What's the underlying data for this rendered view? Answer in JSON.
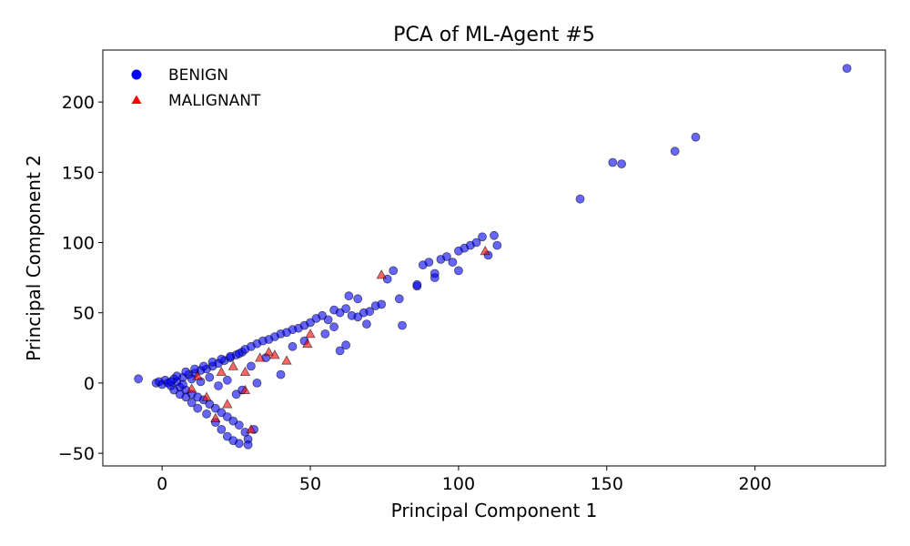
{
  "chart_data": {
    "type": "scatter",
    "title": "PCA of ML-Agent #5",
    "xlabel": "Principal Component 1",
    "ylabel": "Principal Component 2",
    "xlim": [
      -20,
      244
    ],
    "ylim": [
      -59,
      237
    ],
    "xticks": [
      0,
      50,
      100,
      150,
      200
    ],
    "yticks": [
      -50,
      0,
      50,
      100,
      150,
      200
    ],
    "tick_labels_x": [
      "0",
      "50",
      "100",
      "150",
      "200"
    ],
    "tick_labels_y": [
      "−50",
      "0",
      "50",
      "100",
      "150",
      "200"
    ],
    "grid": false,
    "legend": {
      "position": "top-left",
      "frame": false
    },
    "series": [
      {
        "name": "BENIGN",
        "marker": "circle",
        "color": "#0000ff",
        "points": [
          [
            -8,
            3
          ],
          [
            -2,
            0
          ],
          [
            -1,
            1
          ],
          [
            0,
            -1
          ],
          [
            1,
            2
          ],
          [
            2,
            0
          ],
          [
            3,
            -2
          ],
          [
            4,
            3
          ],
          [
            5,
            1
          ],
          [
            6,
            -3
          ],
          [
            7,
            4
          ],
          [
            8,
            -5
          ],
          [
            9,
            6
          ],
          [
            10,
            -8
          ],
          [
            11,
            7
          ],
          [
            12,
            -10
          ],
          [
            13,
            9
          ],
          [
            14,
            -12
          ],
          [
            15,
            10
          ],
          [
            16,
            -15
          ],
          [
            17,
            12
          ],
          [
            18,
            -18
          ],
          [
            19,
            14
          ],
          [
            20,
            -21
          ],
          [
            21,
            16
          ],
          [
            22,
            -24
          ],
          [
            23,
            18
          ],
          [
            24,
            -27
          ],
          [
            25,
            20
          ],
          [
            26,
            -30
          ],
          [
            27,
            22
          ],
          [
            28,
            -35
          ],
          [
            29,
            -40
          ],
          [
            29,
            -44
          ],
          [
            26,
            -43
          ],
          [
            24,
            -41
          ],
          [
            22,
            -38
          ],
          [
            20,
            -33
          ],
          [
            18,
            -28
          ],
          [
            15,
            -22
          ],
          [
            12,
            -18
          ],
          [
            10,
            -14
          ],
          [
            8,
            -10
          ],
          [
            6,
            -8
          ],
          [
            4,
            -5
          ],
          [
            5,
            5
          ],
          [
            8,
            8
          ],
          [
            11,
            10
          ],
          [
            14,
            12
          ],
          [
            17,
            15
          ],
          [
            20,
            17
          ],
          [
            23,
            19
          ],
          [
            26,
            21
          ],
          [
            28,
            24
          ],
          [
            30,
            26
          ],
          [
            32,
            28
          ],
          [
            34,
            30
          ],
          [
            36,
            31
          ],
          [
            38,
            33
          ],
          [
            40,
            35
          ],
          [
            42,
            36
          ],
          [
            44,
            38
          ],
          [
            46,
            39
          ],
          [
            48,
            41
          ],
          [
            50,
            43
          ],
          [
            52,
            46
          ],
          [
            54,
            48
          ],
          [
            56,
            45
          ],
          [
            58,
            52
          ],
          [
            60,
            50
          ],
          [
            62,
            53
          ],
          [
            64,
            48
          ],
          [
            66,
            47
          ],
          [
            68,
            50
          ],
          [
            70,
            51
          ],
          [
            72,
            55
          ],
          [
            74,
            56
          ],
          [
            76,
            74
          ],
          [
            78,
            80
          ],
          [
            80,
            60
          ],
          [
            81,
            41
          ],
          [
            86,
            69
          ],
          [
            88,
            84
          ],
          [
            90,
            86
          ],
          [
            92,
            78
          ],
          [
            94,
            88
          ],
          [
            96,
            90
          ],
          [
            98,
            86
          ],
          [
            100,
            94
          ],
          [
            102,
            96
          ],
          [
            104,
            98
          ],
          [
            106,
            100
          ],
          [
            108,
            104
          ],
          [
            110,
            91
          ],
          [
            112,
            105
          ],
          [
            113,
            98
          ],
          [
            100,
            80
          ],
          [
            92,
            75
          ],
          [
            86,
            70
          ],
          [
            62,
            27
          ],
          [
            60,
            23
          ],
          [
            55,
            35
          ],
          [
            48,
            30
          ],
          [
            44,
            26
          ],
          [
            40,
            6
          ],
          [
            35,
            18
          ],
          [
            30,
            12
          ],
          [
            32,
            0
          ],
          [
            31,
            -33
          ],
          [
            27,
            -5
          ],
          [
            25,
            -8
          ],
          [
            22,
            2
          ],
          [
            19,
            -2
          ],
          [
            16,
            4
          ],
          [
            13,
            1
          ],
          [
            10,
            3
          ],
          [
            7,
            -1
          ],
          [
            3,
            1
          ],
          [
            58,
            40
          ],
          [
            63,
            62
          ],
          [
            66,
            60
          ],
          [
            69,
            42
          ],
          [
            141,
            131
          ],
          [
            152,
            157
          ],
          [
            155,
            156
          ],
          [
            173,
            165
          ],
          [
            180,
            175
          ],
          [
            231,
            224
          ]
        ]
      },
      {
        "name": "MALIGNANT",
        "marker": "triangle",
        "color": "#ff0000",
        "points": [
          [
            74,
            77
          ],
          [
            109,
            94
          ],
          [
            50,
            35
          ],
          [
            49,
            28
          ],
          [
            42,
            16
          ],
          [
            36,
            22
          ],
          [
            38,
            20
          ],
          [
            33,
            18
          ],
          [
            28,
            8
          ],
          [
            30,
            -33
          ],
          [
            28,
            -5
          ],
          [
            22,
            -15
          ],
          [
            18,
            -25
          ],
          [
            15,
            -10
          ],
          [
            12,
            5
          ],
          [
            24,
            12
          ],
          [
            20,
            8
          ],
          [
            10,
            -4
          ]
        ]
      }
    ]
  }
}
